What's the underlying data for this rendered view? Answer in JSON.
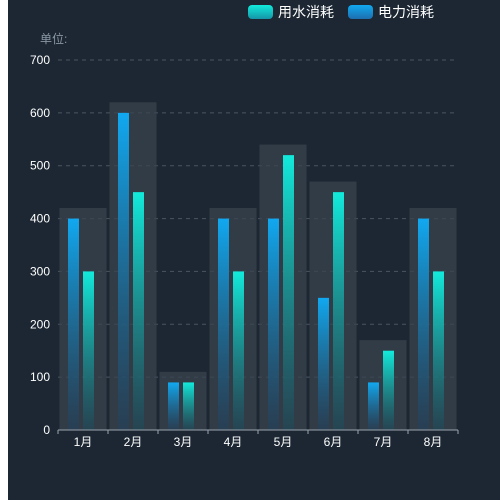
{
  "legend": {
    "items": [
      {
        "label": "用水消耗",
        "color_top": "#12eadb",
        "color_bottom": "#1596a8"
      },
      {
        "label": "电力消耗",
        "color_top": "#11a8f0",
        "color_bottom": "#1d6fb0"
      }
    ]
  },
  "unit_label": "单位:",
  "chart_data": {
    "type": "bar",
    "categories": [
      "1月",
      "2月",
      "3月",
      "4月",
      "5月",
      "6月",
      "7月",
      "8月"
    ],
    "series": [
      {
        "name": "电力消耗",
        "values": [
          400,
          600,
          90,
          400,
          400,
          250,
          90,
          400
        ],
        "color": "#11a8f0"
      },
      {
        "name": "用水消耗",
        "values": [
          300,
          450,
          90,
          300,
          520,
          450,
          150,
          300
        ],
        "color": "#12eadb"
      }
    ],
    "background_values": [
      420,
      620,
      110,
      420,
      540,
      470,
      170,
      420
    ],
    "ylim": [
      0,
      700
    ],
    "yticks": [
      0,
      100,
      200,
      300,
      400,
      500,
      600,
      700
    ],
    "grid": true,
    "legend_position": "top-right",
    "colors": {
      "background": "#1c2733",
      "shadow_bar": "#3a444f",
      "grid": "#4a5561",
      "axis": "#9aa4ae"
    }
  }
}
